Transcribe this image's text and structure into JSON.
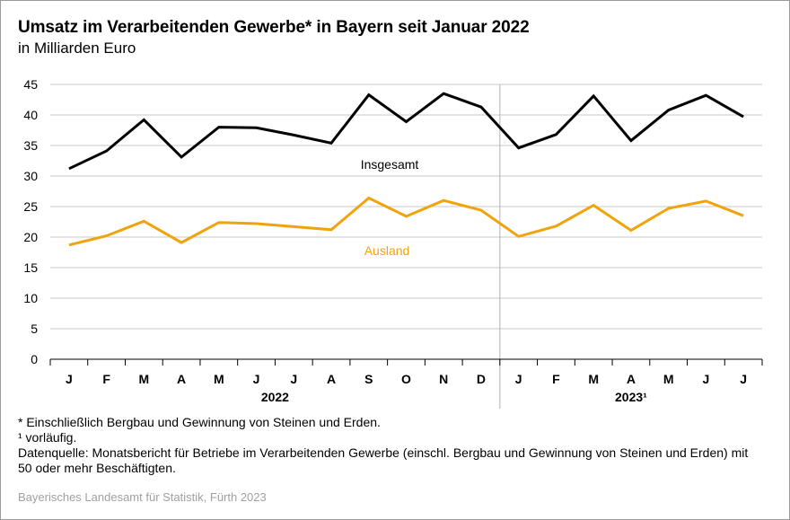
{
  "title": "Umsatz im Verarbeitenden Gewerbe* in Bayern seit Januar 2022",
  "subtitle": "in Milliarden Euro",
  "chart_data": {
    "type": "line",
    "categories": [
      "J",
      "F",
      "M",
      "A",
      "M",
      "J",
      "J",
      "A",
      "S",
      "O",
      "N",
      "D",
      "J",
      "F",
      "M",
      "A",
      "M",
      "J",
      "J"
    ],
    "years": [
      {
        "label": "2022",
        "start": 0,
        "end": 11
      },
      {
        "label": "2023¹",
        "start": 12,
        "end": 18
      }
    ],
    "ylim": [
      0,
      45
    ],
    "yticks": [
      0,
      5,
      10,
      15,
      20,
      25,
      30,
      35,
      40,
      45
    ],
    "grid": true,
    "series": [
      {
        "name": "Insgesamt",
        "color": "#000000",
        "values": [
          31.2,
          34.1,
          39.2,
          33.1,
          38.0,
          37.9,
          36.7,
          35.4,
          43.3,
          38.9,
          43.5,
          41.3,
          34.6,
          36.8,
          43.1,
          35.8,
          40.8,
          43.2,
          39.7
        ]
      },
      {
        "name": "Ausland",
        "color": "#f0a30a",
        "values": [
          18.7,
          20.2,
          22.6,
          19.1,
          22.4,
          22.2,
          21.7,
          21.2,
          26.4,
          23.4,
          26.0,
          24.4,
          20.1,
          21.8,
          25.2,
          21.1,
          24.7,
          25.9,
          23.5
        ]
      }
    ]
  },
  "footnotes": [
    "* Einschließlich Bergbau und Gewinnung von Steinen und Erden.",
    "¹  vorläufig.",
    "Datenquelle: Monatsbericht für Betriebe im Verarbeitenden Gewerbe (einschl. Bergbau und Gewinnung von Steinen und Erden) mit 50 oder mehr Beschäftigten."
  ],
  "source": "Bayerisches Landesamt für Statistik, Fürth 2023"
}
